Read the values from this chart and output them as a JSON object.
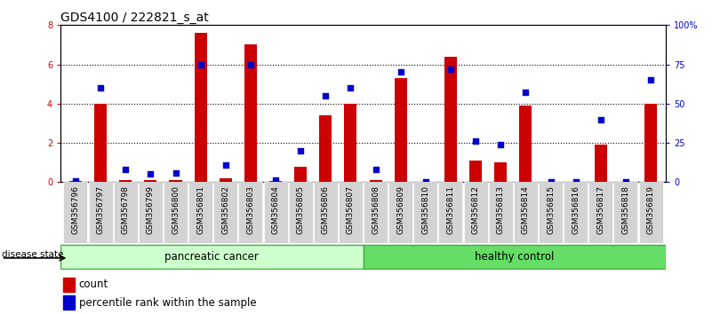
{
  "title": "GDS4100 / 222821_s_at",
  "samples": [
    "GSM356796",
    "GSM356797",
    "GSM356798",
    "GSM356799",
    "GSM356800",
    "GSM356801",
    "GSM356802",
    "GSM356803",
    "GSM356804",
    "GSM356805",
    "GSM356806",
    "GSM356807",
    "GSM356808",
    "GSM356809",
    "GSM356810",
    "GSM356811",
    "GSM356812",
    "GSM356813",
    "GSM356814",
    "GSM356815",
    "GSM356816",
    "GSM356817",
    "GSM356818",
    "GSM356819"
  ],
  "count_values": [
    0.05,
    4.0,
    0.1,
    0.1,
    0.1,
    7.6,
    0.2,
    7.0,
    0.05,
    0.8,
    3.4,
    4.0,
    0.1,
    5.3,
    0.0,
    6.4,
    1.1,
    1.0,
    3.9,
    0.0,
    0.0,
    1.9,
    0.0,
    4.0
  ],
  "percentile_values": [
    1.0,
    60.0,
    8.0,
    5.0,
    6.0,
    75.0,
    11.0,
    75.0,
    1.5,
    20.0,
    55.0,
    60.0,
    8.0,
    70.0,
    0.0,
    72.0,
    26.0,
    24.0,
    57.0,
    0.0,
    0.0,
    40.0,
    0.0,
    65.0
  ],
  "group_labels": [
    "pancreatic cancer",
    "healthy control"
  ],
  "group_split": 12,
  "bar_color": "#CC0000",
  "dot_color": "#0000CC",
  "ylim_left": [
    0,
    8
  ],
  "yticks_left": [
    0,
    2,
    4,
    6,
    8
  ],
  "yticks_right": [
    0,
    25,
    50,
    75,
    100
  ],
  "yticklabels_right": [
    "0",
    "25",
    "50",
    "75",
    "100%"
  ],
  "disease_state_label": "disease state",
  "legend_count": "count",
  "legend_percentile": "percentile rank within the sample",
  "title_fontsize": 10,
  "tick_fontsize": 7,
  "bar_width": 0.5,
  "light_green": "#CCFFCC",
  "med_green": "#66DD66",
  "border_green": "#44AA44"
}
